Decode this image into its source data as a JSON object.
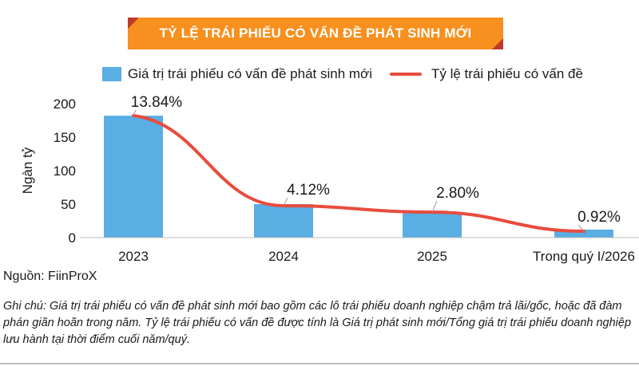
{
  "title": "TỶ LỆ TRÁI PHIẾU CÓ VẤN ĐỀ PHÁT SINH MỚI",
  "legend": {
    "bar": "Giá trị trái phiếu có vấn đề phát sinh mới",
    "line": "Tỷ lệ trái phiếu có vấn đề"
  },
  "source": "Nguồn: FiinProX",
  "note": "Ghi chú: Giá trị trái phiếu có vấn đề phát sinh mới bao gồm các lô trái phiếu doanh nghiệp chậm trả lãi/gốc, hoặc đã đàm phán giãn hoãn trong năm. Tỷ lệ trái phiếu có vấn đề được tính là Giá trị phát sinh mới/Tổng giá trị trái phiếu doanh nghiệp lưu hành tại thời điểm cuối năm/quý.",
  "colors": {
    "bar": "#59aee3",
    "line": "#e84c3d",
    "title_band": "#f7901e",
    "title_band_edge": "#c0392b"
  },
  "chart_data": {
    "type": "bar",
    "categories": [
      "2023",
      "2024",
      "2025",
      "Trong quý I/2026"
    ],
    "ylabel": "Ngàn tỷ",
    "ylim": [
      0,
      200
    ],
    "yticks": [
      0,
      50,
      100,
      150,
      200
    ],
    "series": [
      {
        "name": "Giá trị trái phiếu có vấn đề phát sinh mới",
        "type": "bar",
        "values": [
          182,
          50,
          37,
          12
        ]
      },
      {
        "name": "Tỷ lệ trái phiếu có vấn đề",
        "type": "line",
        "values": [
          13.84,
          4.12,
          2.8,
          0.92
        ],
        "labels": [
          "13.84%",
          "4.12%",
          "2.80%",
          "0.92%"
        ]
      }
    ],
    "grid": false,
    "legend_position": "top"
  }
}
